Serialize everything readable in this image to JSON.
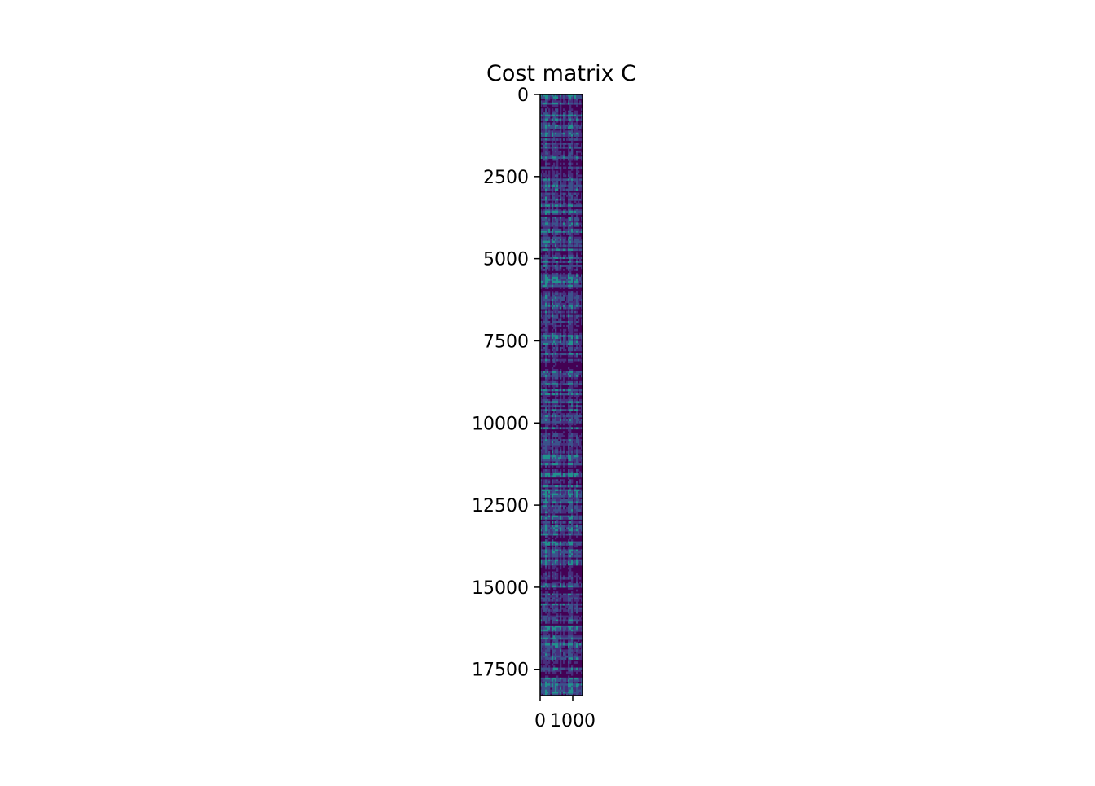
{
  "chart_data": {
    "type": "heatmap",
    "title": "Cost matrix C",
    "xlabel": "",
    "ylabel": "",
    "xlim": [
      0,
      1300
    ],
    "ylim": [
      18300,
      0
    ],
    "x_ticks": [
      0,
      1000
    ],
    "x_tick_labels": [
      "0",
      "1000"
    ],
    "y_ticks": [
      0,
      2500,
      5000,
      7500,
      10000,
      12500,
      15000,
      17500
    ],
    "y_tick_labels": [
      "0",
      "2500",
      "5000",
      "7500",
      "10000",
      "12500",
      "15000",
      "17500"
    ],
    "colormap": "viridis",
    "colors": {
      "low": "#440154",
      "mid": "#3b528b",
      "high": "#21918c"
    },
    "grid": false,
    "legend": "none"
  }
}
